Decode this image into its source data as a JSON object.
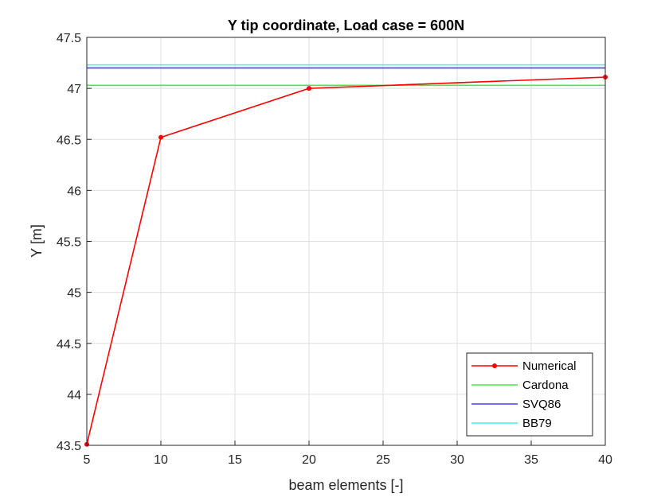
{
  "chart_data": {
    "type": "line",
    "title": "Y tip coordinate, Load case = 600N",
    "xlabel": "beam elements [-]",
    "ylabel": "Y [m]",
    "xlim": [
      5,
      40
    ],
    "ylim": [
      43.5,
      47.5
    ],
    "xticks": [
      "5",
      "10",
      "15",
      "20",
      "25",
      "30",
      "35",
      "40"
    ],
    "yticks": [
      "43.5",
      "44",
      "44.5",
      "45",
      "45.5",
      "46",
      "46.5",
      "47",
      "47.5"
    ],
    "grid": true,
    "legend_position": "bottom-right",
    "series": [
      {
        "name": "Numerical",
        "color": "#ff0000",
        "marker": true,
        "x": [
          5,
          10,
          20,
          40
        ],
        "y": [
          43.51,
          46.52,
          47.0,
          47.11
        ]
      },
      {
        "name": "Cardona",
        "color": "#44ee44",
        "marker": false,
        "x": [
          5,
          40
        ],
        "y": [
          47.03,
          47.03
        ]
      },
      {
        "name": "SVQ86",
        "color": "#4444ee",
        "marker": false,
        "x": [
          5,
          40
        ],
        "y": [
          47.2,
          47.2
        ]
      },
      {
        "name": "BB79",
        "color": "#44eeee",
        "marker": false,
        "x": [
          5,
          40
        ],
        "y": [
          47.23,
          47.23
        ]
      }
    ]
  }
}
